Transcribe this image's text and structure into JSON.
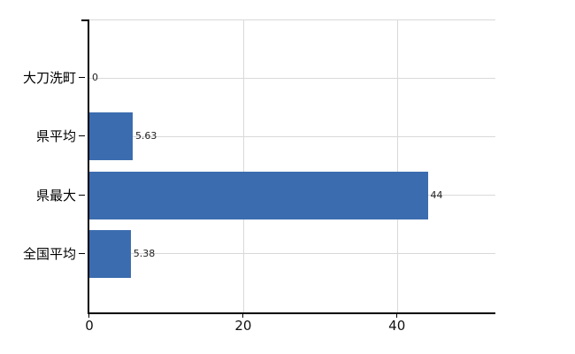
{
  "chart_data": {
    "type": "bar",
    "orientation": "horizontal",
    "title": "",
    "xlabel": "",
    "ylabel": "",
    "categories": [
      "大刀洗町",
      "県平均",
      "県最大",
      "全国平均"
    ],
    "values": [
      0,
      5.63,
      44,
      5.38
    ],
    "value_labels": [
      "0",
      "5.63",
      "44",
      "5.38"
    ],
    "xticks": [
      0,
      20,
      40
    ],
    "xlim": [
      0,
      52.8
    ],
    "grid": true,
    "legend": false,
    "bar_color": "#3b6caf",
    "grid_color": "#d9d9d9",
    "axis_color": "#000000",
    "label_color": "#000000",
    "value_label_color": "#222222",
    "background_color": "#ffffff"
  }
}
